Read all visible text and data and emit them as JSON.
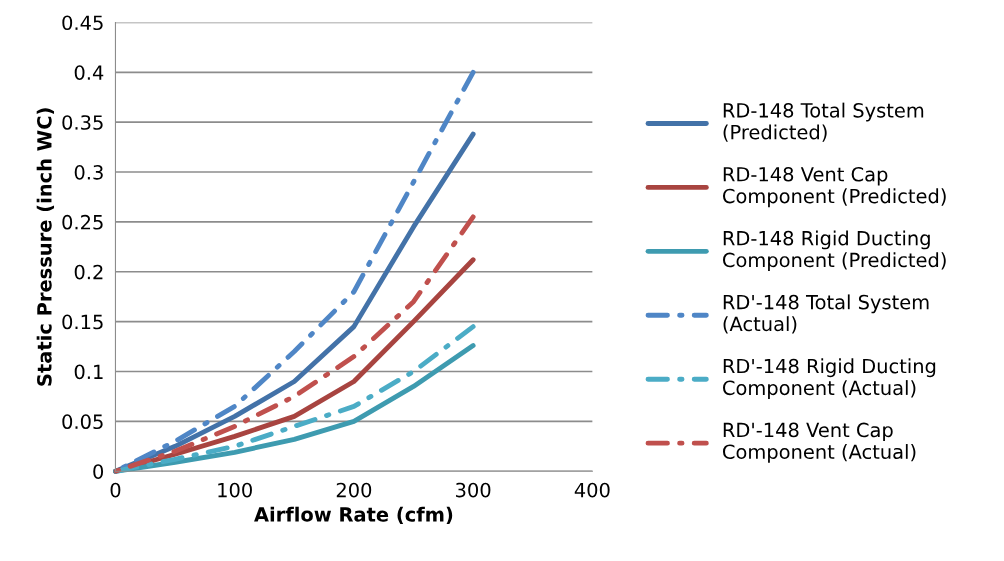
{
  "chart_data": {
    "type": "line",
    "xlabel": "Airflow Rate (cfm)",
    "ylabel": "Static Pressure (inch WC)",
    "x": [
      0,
      50,
      100,
      150,
      200,
      250,
      300
    ],
    "xlim": [
      0,
      400
    ],
    "xticks": [
      0,
      100,
      200,
      300,
      400
    ],
    "ylim": [
      0,
      0.45
    ],
    "yticks": [
      0,
      0.05,
      0.1,
      0.15,
      0.2,
      0.25,
      0.3,
      0.35,
      0.4,
      0.45
    ],
    "grid": "y",
    "legend": "right",
    "marker": "none",
    "series": [
      {
        "name": "RD-148 Total System (Predicted)",
        "color": "#4372a8",
        "line_style": "solid",
        "values": [
          0,
          0.025,
          0.055,
          0.09,
          0.145,
          0.245,
          0.338
        ]
      },
      {
        "name": "RD-148 Vent Cap Component (Predicted)",
        "color": "#a84440",
        "line_style": "solid",
        "values": [
          0,
          0.017,
          0.035,
          0.055,
          0.09,
          0.15,
          0.212
        ]
      },
      {
        "name": "RD-148 Rigid Ducting Component (Predicted)",
        "color": "#3e9bb0",
        "line_style": "solid",
        "values": [
          0,
          0.009,
          0.019,
          0.032,
          0.05,
          0.085,
          0.126
        ]
      },
      {
        "name": "RD'-148 Total System (Actual)",
        "color": "#4f86c6",
        "line_style": "dashdot",
        "values": [
          0,
          0.03,
          0.065,
          0.12,
          0.18,
          0.29,
          0.4
        ]
      },
      {
        "name": "RD'-148 Rigid Ducting Component (Actual)",
        "color": "#4bacc6",
        "line_style": "dashdot",
        "values": [
          0,
          0.012,
          0.025,
          0.045,
          0.065,
          0.1,
          0.145
        ]
      },
      {
        "name": "RD'-148 Vent Cap Component (Actual)",
        "color": "#c0504d",
        "line_style": "dashdot",
        "values": [
          0,
          0.02,
          0.045,
          0.075,
          0.115,
          0.17,
          0.255
        ]
      }
    ]
  }
}
